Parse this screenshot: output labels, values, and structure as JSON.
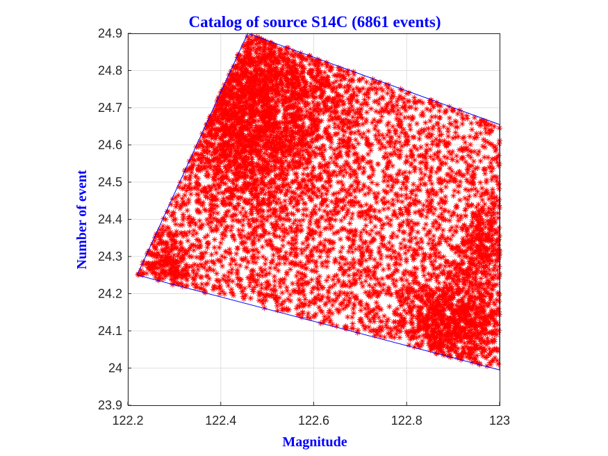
{
  "chart_data": {
    "type": "scatter",
    "title": "Catalog of source S14C (6861 events)",
    "xlabel": "Magnitude",
    "ylabel": "Number of event",
    "xlim": [
      122.2,
      123.0
    ],
    "ylim": [
      23.9,
      24.9
    ],
    "xticks": [
      "122.2",
      "122.4",
      "122.6",
      "122.8",
      "123"
    ],
    "yticks": [
      "23.9",
      "24",
      "24.1",
      "24.2",
      "24.3",
      "24.4",
      "24.5",
      "24.6",
      "24.7",
      "24.8",
      "24.9"
    ],
    "grid": true,
    "marker": "asterisk",
    "colors": {
      "points": "#ff0000",
      "boundary": "#0000ff",
      "labels": "#0000ff",
      "grid": "#dfdfdf",
      "axes": "#262626"
    },
    "boundary_polygon": [
      {
        "x": 122.458,
        "y": 24.9
      },
      {
        "x": 123.0,
        "y": 24.655
      },
      {
        "x": 123.0,
        "y": 23.995
      },
      {
        "x": 122.22,
        "y": 24.25
      }
    ],
    "series": [
      {
        "points_count": 6861
      }
    ]
  }
}
